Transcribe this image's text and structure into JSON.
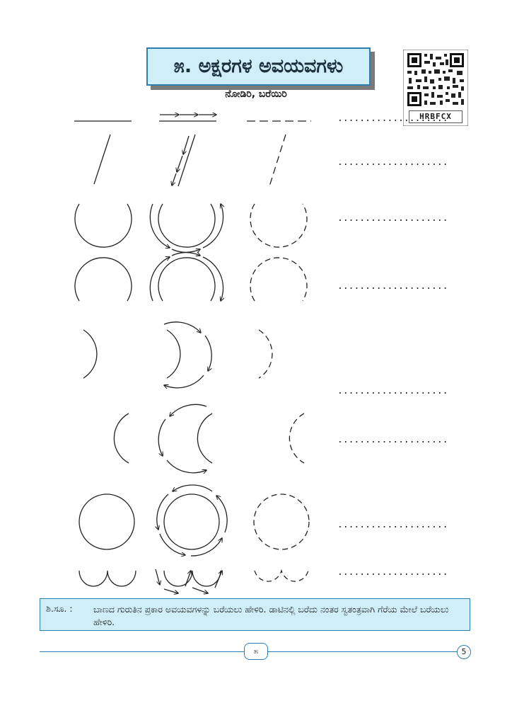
{
  "header": {
    "title": "೫. ಅಕ್ಷರಗಳ ಅವಯವಗಳು",
    "subtitle": "ನೋಡಿರಿ, ಬರೆಯಿರಿ",
    "qr_code": "HRBFCX"
  },
  "practice_rows": {
    "dot_line": "....................",
    "dot_line_top": "...................."
  },
  "note": {
    "prefix": "ಶಿ.ಸೂ.   :",
    "text": "ಬಾಣದ ಗುರುತಿನ ಪ್ರಕಾರ ಅವಯವಗಳನ್ನು ಬರೆಯಲು ಹೇಳಿರಿ. ಡಾಟಿನಲ್ಲಿ ಬರೆದು ನಂತರ ಸ್ವತಂತ್ರವಾಗಿ ಗೆರೆಯ ಮೇಲೆ ಬರೆಯಲು ಹೇಳಿರಿ."
  },
  "footer": {
    "badge": "೫",
    "page_number": "5"
  },
  "colors": {
    "accent": "#2a7fb0",
    "box_fill": "#cfeef8"
  }
}
